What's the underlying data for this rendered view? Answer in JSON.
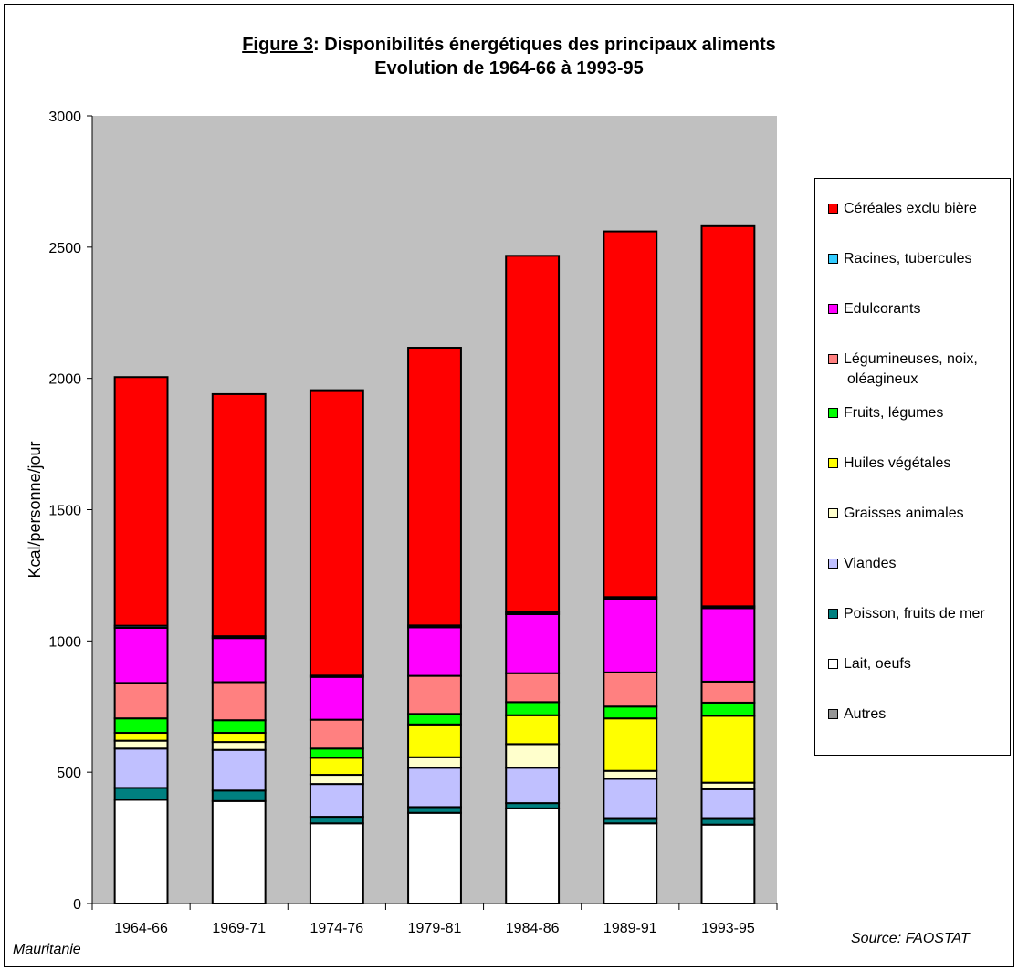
{
  "title": {
    "prefix": "Figure 3",
    "line1_rest": ": Disponibilités énergétiques des principaux aliments",
    "line2": "Evolution de 1964-66 à 1993-95"
  },
  "footer": {
    "country": "Mauritanie",
    "source": "Source: FAOSTAT"
  },
  "chart_data": {
    "type": "bar",
    "stacked": true,
    "ylabel": "Kcal/personne/jour",
    "ylim": [
      0,
      3000
    ],
    "yticks": [
      0,
      500,
      1000,
      1500,
      2000,
      2500,
      3000
    ],
    "plot_background": "#c0c0c0",
    "grid": false,
    "legend_position": "right",
    "categories": [
      "1964-66",
      "1969-71",
      "1974-76",
      "1979-81",
      "1984-86",
      "1989-91",
      "1993-95"
    ],
    "series": [
      {
        "name": "Lait, oeufs",
        "color": "#ffffff",
        "values": [
          395,
          390,
          305,
          345,
          362,
          305,
          300
        ]
      },
      {
        "name": "Poisson, fruits de mer",
        "color": "#008080",
        "values": [
          45,
          40,
          25,
          22,
          20,
          20,
          25
        ]
      },
      {
        "name": "Viandes",
        "color": "#c0c0ff",
        "values": [
          150,
          155,
          125,
          150,
          135,
          150,
          110
        ]
      },
      {
        "name": "Graisses animales",
        "color": "#ffffcc",
        "values": [
          30,
          30,
          35,
          40,
          90,
          30,
          25
        ]
      },
      {
        "name": "Huiles végétales",
        "color": "#ffff00",
        "values": [
          30,
          35,
          65,
          125,
          110,
          200,
          255
        ]
      },
      {
        "name": "Fruits, légumes",
        "color": "#00ff00",
        "values": [
          55,
          48,
          35,
          40,
          50,
          45,
          50
        ]
      },
      {
        "name": "Légumineuses, noix, oléagineux",
        "color": "#ff8080",
        "values": [
          135,
          145,
          110,
          145,
          110,
          130,
          80
        ]
      },
      {
        "name": "Edulcorants",
        "color": "#ff00ff",
        "values": [
          210,
          168,
          163,
          185,
          225,
          280,
          280
        ]
      },
      {
        "name": "Racines, tubercules",
        "color": "#33ccff",
        "values": [
          8,
          7,
          5,
          7,
          7,
          7,
          7
        ]
      },
      {
        "name": "Céréales exclu bière",
        "color": "#ff0000",
        "values": [
          947,
          922,
          1087,
          1058,
          1358,
          1393,
          1448
        ]
      },
      {
        "name": "Autres",
        "color": "#969696",
        "values": [
          0,
          0,
          0,
          0,
          0,
          0,
          0
        ]
      }
    ],
    "legend_order": [
      "Céréales exclu bière",
      "Racines, tubercules",
      "Edulcorants",
      "Légumineuses, noix, oléagineux",
      "Fruits, légumes",
      "Huiles végétales",
      "Graisses animales",
      "Viandes",
      "Poisson, fruits de mer",
      "Lait, oeufs",
      "Autres"
    ]
  }
}
